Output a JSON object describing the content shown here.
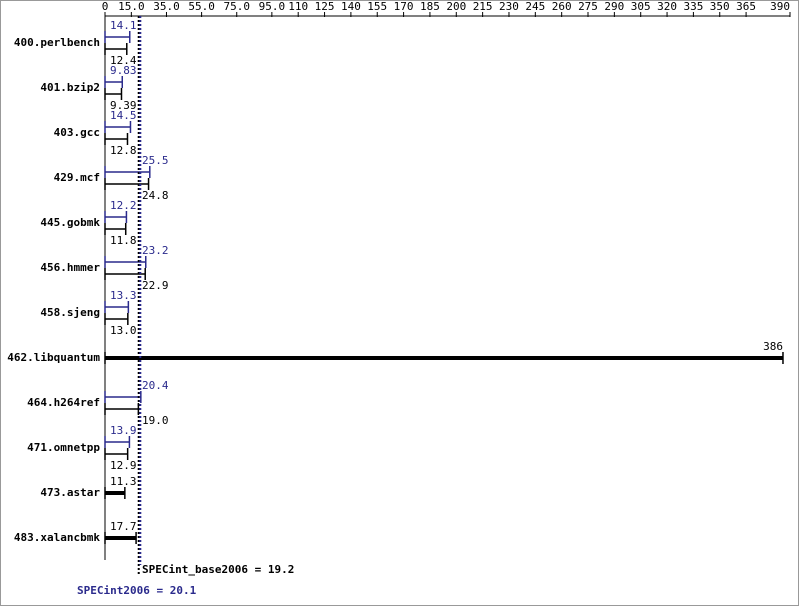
{
  "chart_data": {
    "type": "bar",
    "categories": [
      "400.perlbench",
      "401.bzip2",
      "403.gcc",
      "429.mcf",
      "445.gobmk",
      "456.hmmer",
      "458.sjeng",
      "462.libquantum",
      "464.h264ref",
      "471.omnetpp",
      "473.astar",
      "483.xalancbmk"
    ],
    "series": [
      {
        "color": "#2a2a8c",
        "values": [
          14.1,
          9.83,
          14.5,
          25.5,
          12.2,
          23.2,
          13.3,
          null,
          20.4,
          13.9,
          null,
          null
        ]
      },
      {
        "color": "#000000",
        "values": [
          12.4,
          9.39,
          12.8,
          24.8,
          11.8,
          22.9,
          13.0,
          386,
          19.0,
          12.9,
          11.3,
          17.7
        ],
        "value_labels": [
          "12.4",
          "9.39",
          "12.8",
          "24.8",
          "11.8",
          "22.9",
          "13.0",
          "386",
          "19.0",
          "12.9",
          "11.3",
          "17.7"
        ]
      }
    ],
    "xlim": [
      0,
      390
    ],
    "xticks": [
      0,
      {
        "value": 15,
        "label": "15.0"
      },
      {
        "value": 35,
        "label": "35.0"
      },
      {
        "value": 55,
        "label": "55.0"
      },
      {
        "value": 75,
        "label": "75.0"
      },
      {
        "value": 95,
        "label": "95.0"
      },
      110,
      125,
      140,
      155,
      170,
      185,
      200,
      215,
      230,
      245,
      260,
      275,
      290,
      305,
      320,
      335,
      350,
      365,
      390
    ],
    "references": [
      {
        "label": "SPECint_base2006 = 19.2",
        "value": 19.2,
        "color": "#000000"
      },
      {
        "label": "SPECint2006 = 20.1",
        "value": 20.1,
        "color": "#2a2a8c"
      }
    ]
  }
}
